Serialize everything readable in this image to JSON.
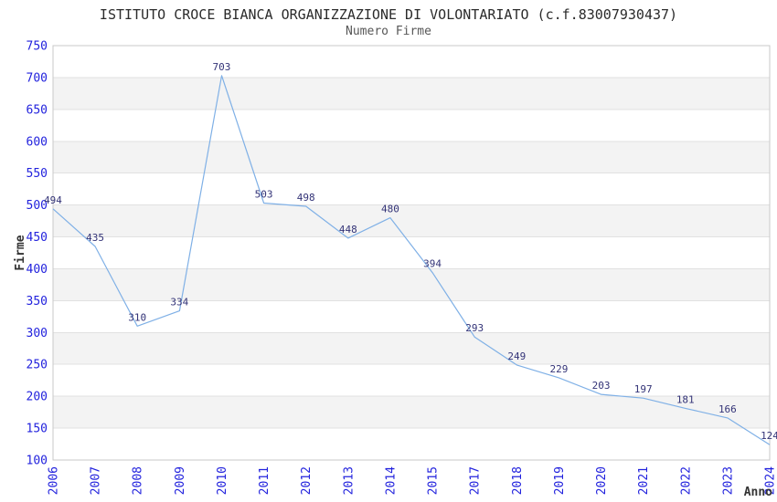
{
  "title": "ISTITUTO CROCE BIANCA ORGANIZZAZIONE DI VOLONTARIATO (c.f.83007930437)",
  "subtitle": "Numero Firme",
  "chart_data": {
    "type": "line",
    "title": "ISTITUTO CROCE BIANCA ORGANIZZAZIONE DI VOLONTARIATO (c.f.83007930437)",
    "subtitle": "Numero Firme",
    "xlabel": "Anno",
    "ylabel": "Firme",
    "categories": [
      "2006",
      "2007",
      "2008",
      "2009",
      "2010",
      "2011",
      "2012",
      "2013",
      "2014",
      "2015",
      "2017",
      "2018",
      "2019",
      "2020",
      "2021",
      "2022",
      "2023",
      "2024"
    ],
    "values": [
      494,
      435,
      310,
      334,
      703,
      503,
      498,
      448,
      480,
      394,
      293,
      249,
      229,
      203,
      197,
      181,
      166,
      124
    ],
    "ylim": [
      100,
      750
    ],
    "ytick_step": 50,
    "grid": "horizontal-only",
    "legend": "none",
    "notes": "year 2016 absent from x axis; alternating horizontal zebra bands; value labels above each point",
    "colors": {
      "line": "#7fb0e6",
      "tick_label": "#2222dd",
      "data_label": "#333377",
      "band": "#f3f3f3",
      "gridline": "#e1e1e1",
      "frame": "#c9c9c9",
      "title": "#2b2b2b",
      "subtitle": "#575757",
      "axis_title": "#333333",
      "background": "#ffffff"
    }
  }
}
